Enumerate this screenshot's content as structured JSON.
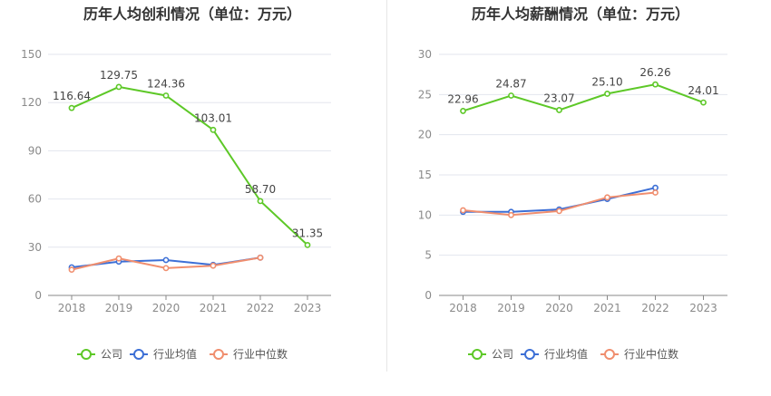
{
  "colors": {
    "company": "#5dc827",
    "industry_avg": "#3c6fd6",
    "industry_median": "#f08e6e",
    "grid": "#e3e6ee",
    "axis": "#888888",
    "tick_text": "#8a8a8a",
    "title_text": "#333333",
    "label_text": "#444444"
  },
  "legend": {
    "company": "公司",
    "industry_avg": "行业均值",
    "industry_median": "行业中位数"
  },
  "chart_data": [
    {
      "type": "line",
      "title": "历年人均创利情况（单位：万元）",
      "categories": [
        "2018",
        "2019",
        "2020",
        "2021",
        "2022",
        "2023"
      ],
      "ylim": [
        0,
        150
      ],
      "yticks": [
        0,
        30,
        60,
        90,
        120,
        150
      ],
      "grid": true,
      "legend_position": "bottom",
      "series": [
        {
          "name": "公司",
          "key": "company",
          "values": [
            116.64,
            129.75,
            124.36,
            103.01,
            58.7,
            31.35
          ],
          "labels": [
            "116.64",
            "129.75",
            "124.36",
            "103.01",
            "58.70",
            "31.35"
          ]
        },
        {
          "name": "行业均值",
          "key": "industry_avg",
          "values": [
            17.5,
            21.0,
            22.0,
            19.0,
            23.5,
            null
          ]
        },
        {
          "name": "行业中位数",
          "key": "industry_median",
          "values": [
            16.0,
            23.0,
            17.0,
            18.5,
            23.5,
            null
          ]
        }
      ]
    },
    {
      "type": "line",
      "title": "历年人均薪酬情况（单位：万元）",
      "categories": [
        "2018",
        "2019",
        "2020",
        "2021",
        "2022",
        "2023"
      ],
      "ylim": [
        0,
        30
      ],
      "yticks": [
        0,
        5,
        10,
        15,
        20,
        25,
        30
      ],
      "grid": true,
      "legend_position": "bottom",
      "series": [
        {
          "name": "公司",
          "key": "company",
          "values": [
            22.96,
            24.87,
            23.07,
            25.1,
            26.26,
            24.01
          ],
          "labels": [
            "22.96",
            "24.87",
            "23.07",
            "25.10",
            "26.26",
            "24.01"
          ]
        },
        {
          "name": "行业均值",
          "key": "industry_avg",
          "values": [
            10.4,
            10.4,
            10.7,
            12.0,
            13.4,
            null
          ]
        },
        {
          "name": "行业中位数",
          "key": "industry_median",
          "values": [
            10.6,
            10.0,
            10.5,
            12.2,
            12.8,
            null
          ]
        }
      ]
    }
  ]
}
